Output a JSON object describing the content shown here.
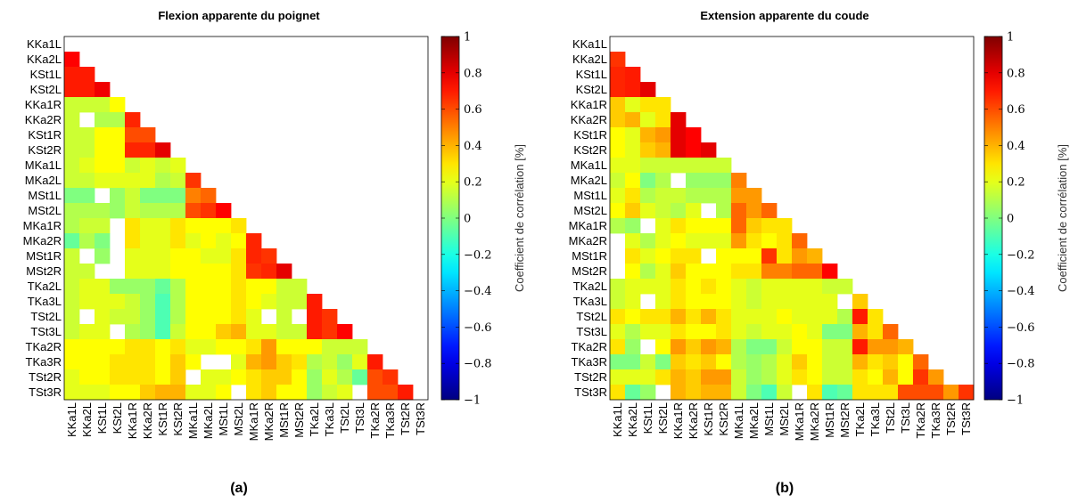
{
  "chart_data": [
    {
      "type": "heatmap",
      "title": "Flexion apparente du poignet",
      "panel_label": "(a)",
      "labels": [
        "KKa1L",
        "KKa2L",
        "KSt1L",
        "KSt2L",
        "KKa1R",
        "KKa2R",
        "KSt1R",
        "KSt2R",
        "MKa1L",
        "MKa2L",
        "MSt1L",
        "MSt2L",
        "MKa1R",
        "MKa2R",
        "MSt1R",
        "MSt2R",
        "TKa2L",
        "TKa3L",
        "TSt2L",
        "TSt3L",
        "TKa2R",
        "TKa3R",
        "TSt2R",
        "TSt3R"
      ],
      "triangle": "lower",
      "colorbar": {
        "label": "Coefficient de corrélation [%]",
        "range": [
          -1,
          1
        ],
        "ticks": [
          "1",
          "0.8",
          "0.6",
          "0.4",
          "0.2",
          "0",
          "−0.2",
          "−0.4",
          "−0.6",
          "−0.8",
          "−1"
        ],
        "colormap": "jet"
      },
      "matrix": [
        [],
        [
          0.75
        ],
        [
          0.7,
          0.7
        ],
        [
          0.7,
          0.7,
          0.78
        ],
        [
          0.15,
          0.15,
          0.15,
          0.25
        ],
        [
          0.15,
          null,
          0.1,
          0.1,
          0.68
        ],
        [
          0.15,
          0.15,
          0.25,
          0.25,
          0.6,
          0.6
        ],
        [
          0.15,
          0.15,
          0.25,
          0.25,
          0.68,
          0.68,
          0.8
        ],
        [
          0.15,
          0.2,
          0.25,
          0.25,
          0.15,
          0.2,
          0.15,
          0.2
        ],
        [
          0.15,
          0.15,
          0.2,
          0.2,
          0.2,
          0.2,
          0.1,
          0.15,
          0.65
        ],
        [
          0.0,
          0.0,
          null,
          0.05,
          0.15,
          0.0,
          0.0,
          0.0,
          0.5,
          0.55
        ],
        [
          0.1,
          0.1,
          0.1,
          0.05,
          0.15,
          0.1,
          0.1,
          0.1,
          0.6,
          0.65,
          0.75
        ],
        [
          0.1,
          0.15,
          0.15,
          null,
          0.3,
          0.2,
          0.2,
          0.3,
          0.25,
          0.25,
          0.25,
          0.3
        ],
        [
          -0.05,
          0.1,
          0.0,
          null,
          0.3,
          0.2,
          0.2,
          0.3,
          0.2,
          0.25,
          0.2,
          0.25,
          0.68
        ],
        [
          0.15,
          null,
          0.05,
          null,
          0.2,
          0.2,
          0.2,
          0.25,
          0.25,
          0.2,
          0.2,
          0.3,
          0.68,
          0.65
        ],
        [
          0.15,
          0.15,
          null,
          null,
          0.2,
          0.2,
          0.2,
          0.25,
          0.25,
          0.25,
          0.25,
          0.3,
          0.65,
          0.68,
          0.8
        ],
        [
          0.15,
          0.2,
          0.2,
          0.05,
          0.05,
          0.05,
          -0.05,
          0.1,
          0.25,
          0.25,
          0.25,
          0.3,
          0.25,
          0.25,
          0.15,
          0.15
        ],
        [
          0.15,
          0.2,
          0.2,
          0.2,
          0.15,
          0.05,
          -0.1,
          0.1,
          0.25,
          0.25,
          0.25,
          0.3,
          0.25,
          0.2,
          0.15,
          0.15,
          0.7
        ],
        [
          0.15,
          null,
          0.2,
          0.15,
          0.15,
          0.05,
          -0.1,
          0.1,
          0.25,
          0.25,
          0.25,
          0.3,
          0.2,
          null,
          0.15,
          null,
          0.7,
          0.65
        ],
        [
          0.15,
          0.2,
          0.2,
          null,
          0.1,
          0.05,
          -0.1,
          0.15,
          0.25,
          0.25,
          0.35,
          0.4,
          0.2,
          0.2,
          0.15,
          0.15,
          0.7,
          0.65,
          0.75
        ],
        [
          0.25,
          0.25,
          0.25,
          0.25,
          0.3,
          0.3,
          0.25,
          0.3,
          0.2,
          0.2,
          0.25,
          0.25,
          0.3,
          0.45,
          0.25,
          0.25,
          0.25,
          0.15,
          0.15,
          0.15
        ],
        [
          0.25,
          0.25,
          0.25,
          0.3,
          0.3,
          0.3,
          0.25,
          0.35,
          0.25,
          null,
          null,
          0.2,
          0.4,
          0.45,
          0.35,
          0.3,
          0.1,
          0.15,
          0.05,
          0.2,
          0.7
        ],
        [
          0.2,
          0.25,
          0.25,
          0.3,
          0.3,
          0.3,
          0.25,
          0.35,
          null,
          0.2,
          0.2,
          0.25,
          0.3,
          0.35,
          0.35,
          0.25,
          0.05,
          0.2,
          0.1,
          -0.05,
          0.6,
          0.65
        ],
        [
          0.2,
          0.2,
          0.2,
          0.25,
          0.25,
          0.35,
          0.4,
          0.4,
          0.2,
          0.2,
          0.25,
          null,
          0.3,
          0.35,
          0.25,
          0.25,
          0.05,
          0.15,
          0.2,
          null,
          0.6,
          0.6,
          0.7
        ]
      ]
    },
    {
      "type": "heatmap",
      "title": "Extension apparente du coude",
      "panel_label": "(b)",
      "labels": [
        "KKa1L",
        "KKa2L",
        "KSt1L",
        "KSt2L",
        "KKa1R",
        "KKa2R",
        "KSt1R",
        "KSt2R",
        "MKa1L",
        "MKa2L",
        "MSt1L",
        "MSt2L",
        "MKa1R",
        "MKa2R",
        "MSt1R",
        "MSt2R",
        "TKa2L",
        "TKa3L",
        "TSt2L",
        "TSt3L",
        "TKa2R",
        "TKa3R",
        "TSt2R",
        "TSt3R"
      ],
      "triangle": "lower",
      "colorbar": {
        "label": "Coefficient de corrélation [%]",
        "range": [
          -1,
          1
        ],
        "ticks": [
          "1",
          "0.8",
          "0.6",
          "0.4",
          "0.2",
          "0",
          "−0.2",
          "−0.4",
          "−0.6",
          "−0.8",
          "−1"
        ],
        "colormap": "jet"
      },
      "matrix": [
        [],
        [
          0.65
        ],
        [
          0.68,
          0.7
        ],
        [
          0.68,
          0.7,
          0.8
        ],
        [
          0.35,
          0.2,
          0.3,
          0.3
        ],
        [
          0.35,
          0.4,
          0.2,
          0.3,
          0.8
        ],
        [
          0.25,
          0.2,
          0.4,
          0.45,
          0.8,
          0.75
        ],
        [
          0.25,
          0.2,
          0.35,
          0.4,
          0.8,
          0.75,
          0.8
        ],
        [
          0.2,
          0.2,
          0.15,
          0.15,
          0.15,
          0.15,
          0.15,
          0.15
        ],
        [
          0.15,
          0.25,
          0.0,
          0.1,
          null,
          0.05,
          0.05,
          0.05,
          0.5
        ],
        [
          0.2,
          0.3,
          0.1,
          0.15,
          0.15,
          0.1,
          0.1,
          0.1,
          0.45,
          0.45
        ],
        [
          0.25,
          0.35,
          0.2,
          0.15,
          0.1,
          0.2,
          null,
          0.1,
          0.55,
          0.45,
          0.55
        ],
        [
          0.1,
          0.05,
          null,
          0.2,
          0.3,
          0.25,
          0.25,
          0.25,
          0.55,
          0.35,
          0.3,
          0.3
        ],
        [
          null,
          0.2,
          0.1,
          0.2,
          0.25,
          0.2,
          0.2,
          0.2,
          0.45,
          0.3,
          0.25,
          0.3,
          0.55
        ],
        [
          null,
          0.3,
          0.2,
          0.25,
          0.3,
          0.3,
          null,
          0.25,
          0.25,
          0.25,
          0.65,
          0.3,
          0.45,
          0.4
        ],
        [
          null,
          0.25,
          0.1,
          0.2,
          0.35,
          0.25,
          0.25,
          0.25,
          0.3,
          0.3,
          0.5,
          0.5,
          0.55,
          0.55,
          0.75
        ],
        [
          0.15,
          0.2,
          0.2,
          0.2,
          0.3,
          0.25,
          0.3,
          0.25,
          0.2,
          0.15,
          0.2,
          0.2,
          0.2,
          0.2,
          0.15,
          0.15
        ],
        [
          0.15,
          0.2,
          null,
          0.2,
          0.3,
          0.25,
          0.25,
          0.25,
          0.2,
          0.15,
          0.2,
          0.2,
          0.2,
          0.2,
          0.2,
          null,
          0.35
        ],
        [
          0.3,
          0.25,
          0.3,
          0.3,
          0.4,
          0.3,
          0.4,
          0.3,
          0.2,
          0.2,
          0.2,
          0.25,
          0.2,
          0.2,
          0.2,
          0.1,
          0.7,
          0.3
        ],
        [
          0.2,
          0.1,
          0.2,
          0.2,
          0.3,
          0.25,
          0.25,
          0.3,
          0.2,
          0.15,
          0.2,
          0.2,
          0.25,
          0.2,
          0.0,
          0.0,
          0.4,
          0.3,
          0.55
        ],
        [
          0.3,
          0.05,
          null,
          0.25,
          0.45,
          0.35,
          0.45,
          0.4,
          0.1,
          0.0,
          0.0,
          0.15,
          0.25,
          0.25,
          0.15,
          0.15,
          0.7,
          0.45,
          0.45,
          0.4
        ],
        [
          0.0,
          0.0,
          0.15,
          0.0,
          0.35,
          0.3,
          0.35,
          0.25,
          0.1,
          0.05,
          0.1,
          0.2,
          0.35,
          0.25,
          0.15,
          0.15,
          0.4,
          0.3,
          0.35,
          0.25,
          0.55
        ],
        [
          0.2,
          0.2,
          0.2,
          0.3,
          0.4,
          0.35,
          0.45,
          0.45,
          0.15,
          0.05,
          0.1,
          0.2,
          0.3,
          0.25,
          0.15,
          0.15,
          0.3,
          0.25,
          0.4,
          0.25,
          0.65,
          0.45
        ],
        [
          0.3,
          -0.05,
          0.05,
          null,
          0.4,
          0.35,
          0.4,
          0.4,
          0.15,
          0.0,
          -0.1,
          0.15,
          null,
          0.3,
          -0.1,
          -0.05,
          0.3,
          0.3,
          0.3,
          0.6,
          0.6,
          0.6,
          0.45,
          0.65
        ]
      ]
    }
  ]
}
